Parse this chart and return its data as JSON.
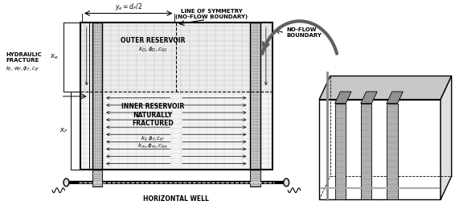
{
  "bg_color": "#ffffff",
  "outer_reservoir": "OUTER RESERVOIR",
  "outer_params": "$k_O, \\phi_O, c_{tO}$",
  "inner_reservoir": "INNER RESERVOIR\nNATURALLY\nFRACTURED",
  "inner_params1": "$k_f, \\phi_f, c_{tf}$",
  "inner_params2": "$k_m, \\phi_m, c_{tm}$",
  "hydraulic_fracture_label": "HYDRAULIC\nFRACTURE",
  "fracture_params": "$k_F, w_F, \\phi_F, c_{tF}$",
  "horizontal_well": "HORIZONTAL WELL",
  "ye_label": "$y_e = d_F /2$",
  "xe_label": "$x_e$",
  "xf_label": "$x_F$",
  "line_of_symmetry": "LINE OF SYMMETRY\n(NO-FLOW BOUNDARY)",
  "no_flow_boundary": "NO-FLOW\nBOUNDARY"
}
